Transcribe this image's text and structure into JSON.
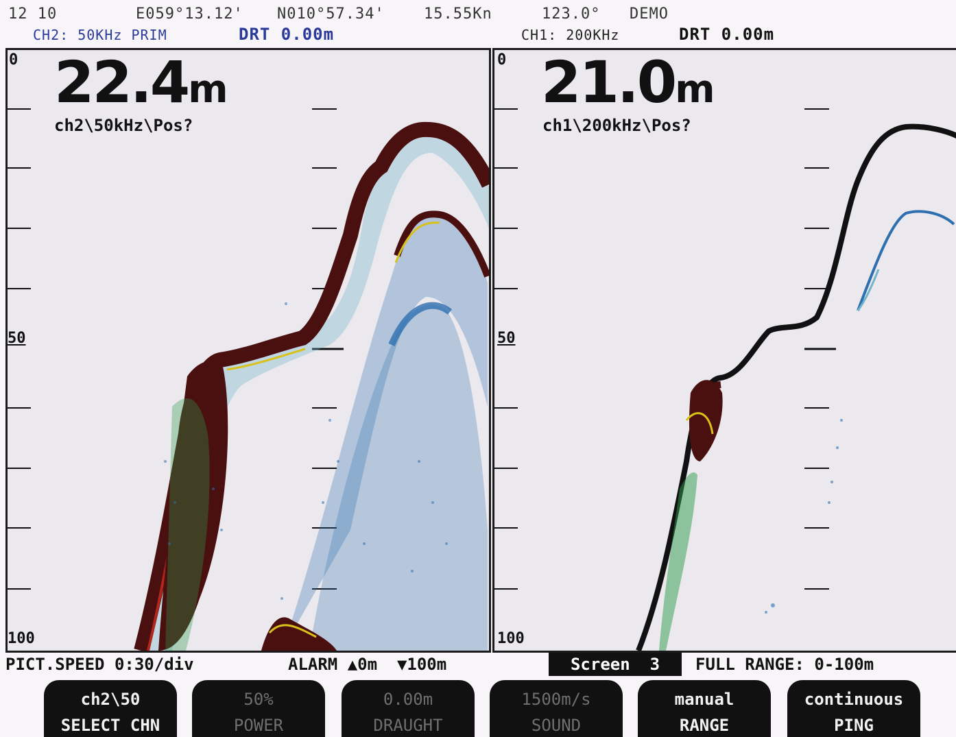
{
  "header": {
    "time": "12 10",
    "longitude": "E059°13.12'",
    "latitude": "N010°57.34'",
    "speed": "15.55Kn",
    "heading": "123.0°",
    "mode": "DEMO"
  },
  "left_channel": {
    "label": "CH2: 50KHz PRIM",
    "drt": "DRT 0.00m",
    "depth_value": "22.4",
    "depth_unit": "m",
    "info": "ch2\\50kHz\\Pos?",
    "scale_top": "0",
    "scale_mid": "50",
    "scale_bottom": "100"
  },
  "right_channel": {
    "label": "CH1: 200KHz",
    "drt": "DRT 0.00m",
    "depth_value": "21.0",
    "depth_unit": "m",
    "info": "ch1\\200kHz\\Pos?",
    "scale_top": "0",
    "scale_mid": "50",
    "scale_bottom": "100"
  },
  "status": {
    "pict_speed": "PICT.SPEED 0:30/div",
    "alarm": "ALARM ▲0m  ▼100m",
    "screen": "Screen  3",
    "full_range": "FULL RANGE: 0-100m"
  },
  "softkeys": [
    {
      "line1": "ch2\\50",
      "line2": "SELECT CHN",
      "enabled": true
    },
    {
      "line1": "50%",
      "line2": "POWER",
      "enabled": false
    },
    {
      "line1": "0.00m",
      "line2": "DRAUGHT",
      "enabled": false
    },
    {
      "line1": "1500m/s",
      "line2": "SOUND",
      "enabled": false
    },
    {
      "line1": "manual",
      "line2": "RANGE",
      "enabled": true
    },
    {
      "line1": "continuous",
      "line2": "PING",
      "enabled": true
    }
  ],
  "colors": {
    "background": "#ebe9ee",
    "bottom_echo": "#4a0f0f",
    "echo_red": "#b3261e",
    "echo_yellow": "#d8c21a",
    "echo_green": "#2e9c4a",
    "echo_blue": "#2e6fb0",
    "echo_cyan": "#6fb4c8",
    "header_blue": "#2b3a9a"
  },
  "icons": {
    "alarm_up": "up-triangle-icon",
    "alarm_down": "down-triangle-icon"
  }
}
